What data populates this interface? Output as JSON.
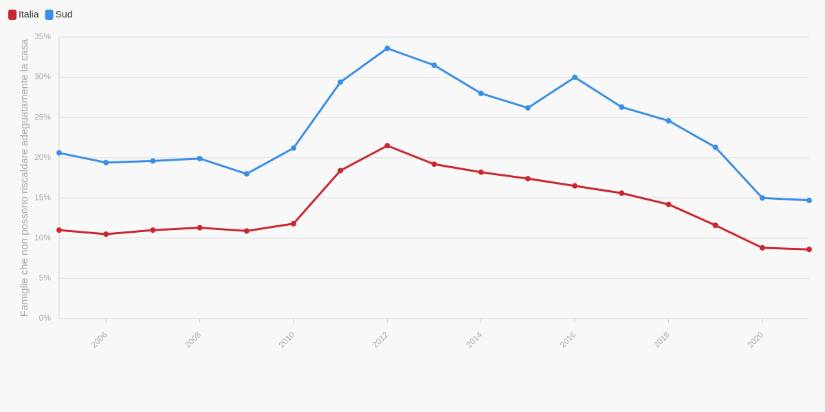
{
  "chart_data": {
    "type": "line",
    "y_label": "Famiglie che non possono riscaldare adeguatamente la casa",
    "x": [
      2005,
      2006,
      2007,
      2008,
      2009,
      2010,
      2011,
      2012,
      2013,
      2014,
      2015,
      2016,
      2017,
      2018,
      2019,
      2020,
      2021
    ],
    "series": [
      {
        "name": "Italia",
        "color": "#c9262f",
        "values": [
          11.0,
          10.5,
          11.0,
          11.3,
          10.9,
          11.8,
          18.4,
          21.5,
          19.2,
          18.2,
          17.4,
          16.5,
          15.6,
          14.2,
          11.6,
          8.8,
          8.6
        ]
      },
      {
        "name": "Sud",
        "color": "#3a8ee6",
        "values": [
          20.6,
          19.4,
          19.6,
          19.9,
          18.0,
          21.2,
          29.4,
          33.6,
          31.5,
          28.0,
          26.2,
          30.0,
          26.3,
          24.6,
          21.3,
          15.0,
          14.7
        ]
      }
    ],
    "xlim": [
      2005,
      2021
    ],
    "xticks": [
      2006,
      2008,
      2010,
      2012,
      2014,
      2016,
      2018,
      2020
    ],
    "ylim": [
      0,
      35
    ],
    "yticks": [
      {
        "value": 0,
        "label": "0%"
      },
      {
        "value": 5,
        "label": "5%"
      },
      {
        "value": 10,
        "label": "10%"
      },
      {
        "value": 15,
        "label": "15%"
      },
      {
        "value": 20,
        "label": "20%"
      },
      {
        "value": 25,
        "label": "25%"
      },
      {
        "value": 30,
        "label": "30%"
      },
      {
        "value": 35,
        "label": "35%"
      }
    ],
    "grid": true,
    "legend": "top-left"
  }
}
